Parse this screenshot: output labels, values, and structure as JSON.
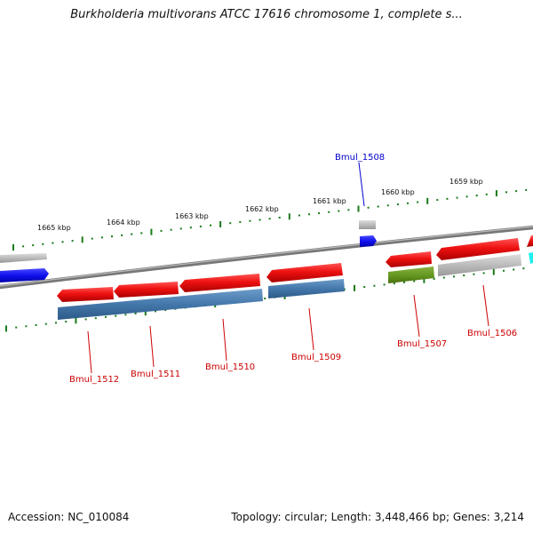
{
  "title": "Burkholderia multivorans ATCC 17616 chromosome 1, complete s...",
  "footer": {
    "accession": "Accession: NC_010084",
    "summary": "Topology: circular; Length: 3,448,466 bp; Genes: 3,214"
  },
  "scale_labels": [
    "1659 kbp",
    "1660 kbp",
    "1661 kbp",
    "1662 kbp",
    "1663 kbp",
    "1664 kbp",
    "1665 kbp"
  ],
  "gene_labels": [
    "Bmul_1508",
    "Bmul_1506",
    "Bmul_1507",
    "Bmul_1509",
    "Bmul_1510",
    "Bmul_1511",
    "Bmul_1512"
  ],
  "colors": {
    "cds": "#ee1111",
    "gene_bar": "#4477aa",
    "pseudo": "#669922",
    "other_gene": "#bbbbbb",
    "strand_minus_cds": "#1111ee",
    "label_red": "#cc0000",
    "label_blue": "#0000cc",
    "tick": "#1a7a1a",
    "backbone": "#777777",
    "cyan": "#22eeee"
  }
}
